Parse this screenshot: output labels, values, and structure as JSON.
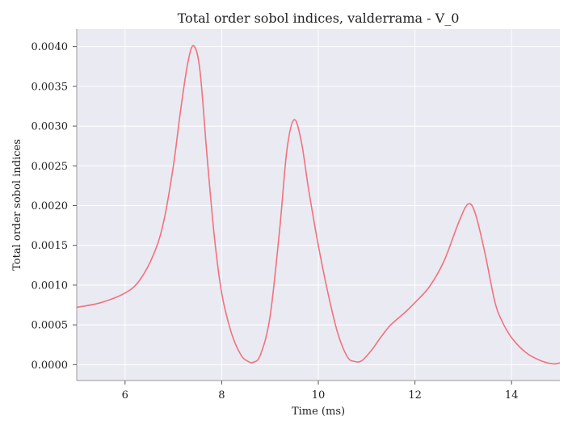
{
  "chart_data": {
    "type": "line",
    "title": "Total order sobol indices, valderrama - V_0",
    "xlabel": "Time (ms)",
    "ylabel": "Total order sobol indices",
    "xlim": [
      5.0,
      15.0
    ],
    "ylim": [
      -0.0002,
      0.00422
    ],
    "xticks": [
      6,
      8,
      10,
      12,
      14
    ],
    "xtick_labels": [
      "6",
      "8",
      "10",
      "12",
      "14"
    ],
    "yticks": [
      0.0,
      0.0005,
      0.001,
      0.0015,
      0.002,
      0.0025,
      0.003,
      0.0035,
      0.004
    ],
    "ytick_labels": [
      "0.0000",
      "0.0005",
      "0.0010",
      "0.0015",
      "0.0020",
      "0.0025",
      "0.0030",
      "0.0035",
      "0.0040"
    ],
    "grid": true,
    "background": "#eaeaf2",
    "line_color": "#f0727f",
    "series": [
      {
        "name": "",
        "x": [
          5.0,
          5.5,
          6.0,
          6.3,
          6.6,
          6.8,
          7.0,
          7.15,
          7.3,
          7.42,
          7.55,
          7.7,
          7.85,
          8.0,
          8.2,
          8.4,
          8.55,
          8.65,
          8.8,
          9.0,
          9.2,
          9.35,
          9.5,
          9.65,
          9.8,
          10.0,
          10.2,
          10.4,
          10.6,
          10.75,
          10.9,
          11.1,
          11.3,
          11.5,
          11.8,
          12.0,
          12.3,
          12.6,
          12.9,
          13.1,
          13.25,
          13.45,
          13.65,
          13.8,
          14.0,
          14.3,
          14.6,
          14.85,
          15.0
        ],
        "y": [
          0.00072,
          0.00078,
          0.0009,
          0.00106,
          0.0014,
          0.0018,
          0.0025,
          0.0032,
          0.0038,
          0.00401,
          0.0037,
          0.0026,
          0.0016,
          0.0009,
          0.0004,
          0.00012,
          4e-05,
          3e-05,
          0.00012,
          0.0006,
          0.0017,
          0.0027,
          0.00308,
          0.0028,
          0.0022,
          0.0015,
          0.0009,
          0.0004,
          0.0001,
          4e-05,
          5e-05,
          0.00018,
          0.00035,
          0.0005,
          0.00066,
          0.00078,
          0.00098,
          0.0013,
          0.00178,
          0.00202,
          0.0019,
          0.0014,
          0.0008,
          0.00055,
          0.00034,
          0.00015,
          5e-05,
          1e-05,
          2e-05
        ]
      }
    ]
  }
}
